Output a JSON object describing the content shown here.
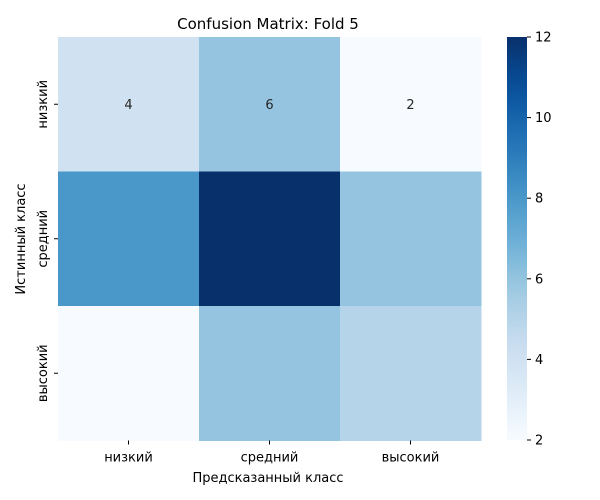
{
  "chart_data": {
    "type": "heatmap",
    "title": "Confusion Matrix: Fold 5",
    "xlabel": "Предсказанный класс",
    "ylabel": "Истинный класс",
    "x_categories": [
      "низкий",
      "средний",
      "высокий"
    ],
    "y_categories": [
      "низкий",
      "средний",
      "высокий"
    ],
    "values": [
      [
        4,
        6,
        2
      ],
      [
        8,
        12,
        6
      ],
      [
        2,
        6,
        5
      ]
    ],
    "annotated_rows": [
      0
    ],
    "colorbar": {
      "min": 2,
      "max": 12,
      "ticks": [
        2,
        4,
        6,
        8,
        10,
        12
      ]
    },
    "colormap": "Blues",
    "grid": false
  }
}
